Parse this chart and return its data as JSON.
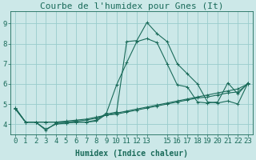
{
  "title": "Courbe de l'humidex pour Gnes (It)",
  "xlabel": "Humidex (Indice chaleur)",
  "xlim": [
    -0.5,
    23.5
  ],
  "ylim": [
    3.5,
    9.6
  ],
  "yticks": [
    4,
    5,
    6,
    7,
    8,
    9
  ],
  "xticks": [
    0,
    1,
    2,
    3,
    4,
    5,
    6,
    7,
    8,
    9,
    10,
    11,
    12,
    13,
    15,
    16,
    17,
    18,
    19,
    20,
    21,
    22,
    23
  ],
  "background_color": "#cce8e8",
  "grid_color": "#99cccc",
  "line_color": "#1a6b5a",
  "series": [
    [
      4.8,
      4.1,
      4.1,
      3.7,
      4.05,
      4.05,
      4.1,
      4.1,
      4.15,
      4.5,
      4.6,
      8.1,
      8.15,
      9.05,
      8.5,
      8.1,
      7.0,
      6.5,
      6.0,
      5.1,
      5.05,
      5.15,
      5.0,
      6.05
    ],
    [
      4.8,
      4.1,
      4.1,
      3.75,
      4.0,
      4.05,
      4.1,
      4.1,
      4.2,
      4.55,
      5.95,
      7.05,
      8.1,
      8.25,
      8.05,
      7.0,
      5.95,
      5.85,
      5.1,
      5.05,
      5.1,
      6.05,
      5.5,
      6.05
    ],
    [
      4.75,
      4.1,
      4.1,
      4.1,
      4.1,
      4.1,
      4.15,
      4.2,
      4.3,
      4.45,
      4.55,
      4.65,
      4.75,
      4.85,
      4.95,
      5.05,
      5.15,
      5.25,
      5.35,
      5.45,
      5.55,
      5.65,
      5.75,
      6.0
    ],
    [
      4.75,
      4.1,
      4.1,
      4.1,
      4.1,
      4.15,
      4.2,
      4.25,
      4.35,
      4.45,
      4.5,
      4.6,
      4.7,
      4.8,
      4.9,
      5.0,
      5.1,
      5.2,
      5.3,
      5.35,
      5.45,
      5.55,
      5.6,
      6.0
    ]
  ],
  "title_fontsize": 8,
  "axis_fontsize": 7,
  "tick_fontsize": 6.5
}
